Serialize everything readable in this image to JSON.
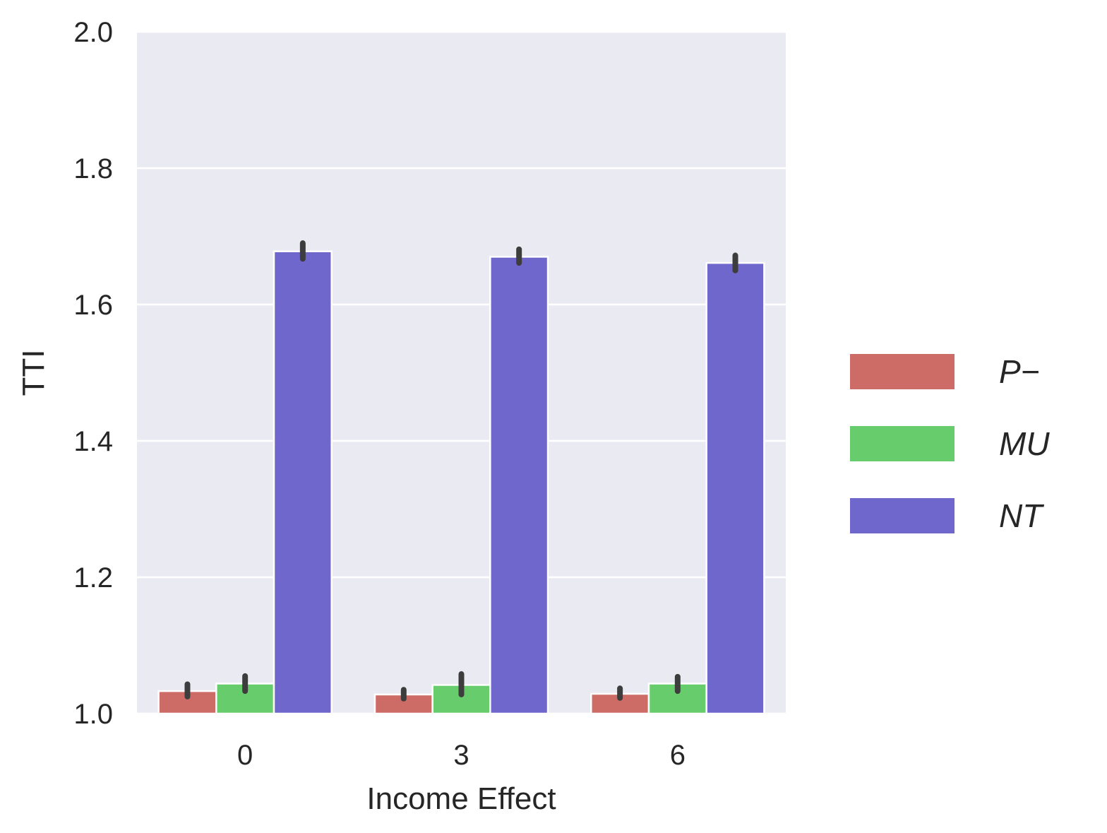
{
  "chart_data": {
    "type": "bar",
    "xlabel": "Income Effect",
    "ylabel": "TTI",
    "categories": [
      "0",
      "3",
      "6"
    ],
    "ylim": [
      1.0,
      2.0
    ],
    "yticks": [
      "1.0",
      "1.2",
      "1.4",
      "1.6",
      "1.8",
      "2.0"
    ],
    "grid": true,
    "legend_position": "right",
    "series": [
      {
        "name": "P−",
        "color": "#cd6b66",
        "values": [
          1.033,
          1.028,
          1.029
        ],
        "err_low": [
          1.025,
          1.022,
          1.023
        ],
        "err_high": [
          1.043,
          1.035,
          1.037
        ]
      },
      {
        "name": "MU",
        "color": "#67cc6b",
        "values": [
          1.044,
          1.042,
          1.044
        ],
        "err_low": [
          1.033,
          1.028,
          1.033
        ],
        "err_high": [
          1.055,
          1.058,
          1.054
        ]
      },
      {
        "name": "NT",
        "color": "#6f67cc",
        "values": [
          1.678,
          1.67,
          1.661
        ],
        "err_low": [
          1.667,
          1.661,
          1.65
        ],
        "err_high": [
          1.69,
          1.681,
          1.672
        ]
      }
    ],
    "colors": {
      "background": "#eaeaf2",
      "grid": "#ffffff",
      "errorbar": "#3d3d3d",
      "text": "#262626"
    }
  }
}
